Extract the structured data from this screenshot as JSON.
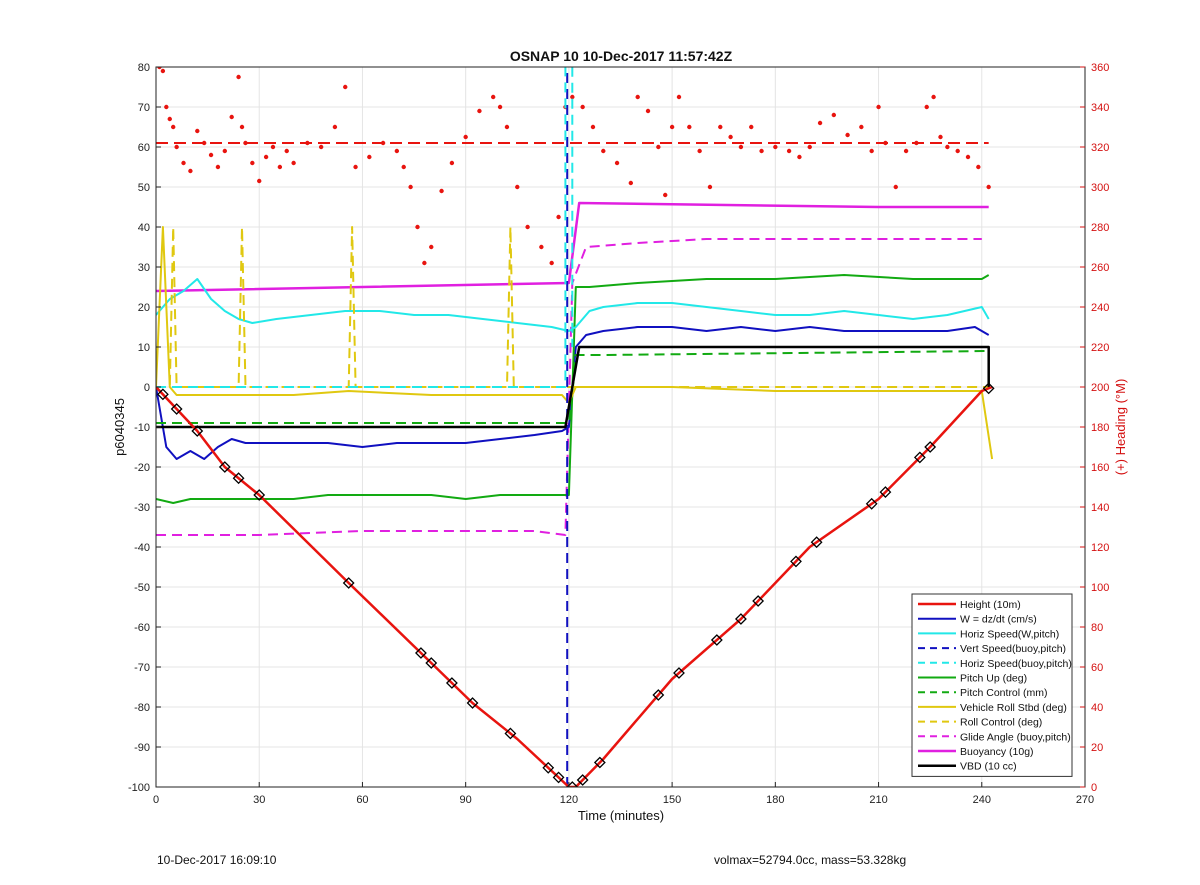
{
  "chart_data": {
    "type": "line",
    "title": "OSNAP 10 10-Dec-2017 11:57:42Z",
    "xlabel": "Time (minutes)",
    "ylabel": "p6040345",
    "y2label": "(+) Heading (°M)",
    "xlim": [
      0,
      270
    ],
    "ylim": [
      -100,
      80
    ],
    "y2lim": [
      0,
      360
    ],
    "xticks": [
      0,
      30,
      60,
      90,
      120,
      150,
      180,
      210,
      240,
      270
    ],
    "yticks": [
      -100,
      -90,
      -80,
      -70,
      -60,
      -50,
      -40,
      -30,
      -20,
      -10,
      0,
      10,
      20,
      30,
      40,
      50,
      60,
      70,
      80
    ],
    "y2ticks": [
      0,
      20,
      40,
      60,
      80,
      100,
      120,
      140,
      160,
      180,
      200,
      220,
      240,
      260,
      280,
      300,
      320,
      340,
      360
    ],
    "grid": true,
    "legend_position": "bottom-right",
    "series": [
      {
        "name": "Height (10m)",
        "color": "#e8140f",
        "style": "solid",
        "width": 2.5,
        "x": [
          0,
          12,
          20,
          30,
          56,
          80,
          92,
          105,
          120,
          122,
          130,
          150,
          170,
          190,
          210,
          225,
          240,
          243
        ],
        "y": [
          0,
          -11,
          -20,
          -27,
          -49,
          -69,
          -79,
          -88,
          -100,
          -100,
          -93,
          -73,
          -58,
          -40,
          -28,
          -15,
          -1,
          0
        ]
      },
      {
        "name": "W = dz/dt (cm/s)",
        "color": "#1010c0",
        "style": "solid",
        "width": 2,
        "x": [
          0,
          3,
          6,
          10,
          14,
          18,
          22,
          26,
          30,
          40,
          50,
          60,
          70,
          80,
          90,
          100,
          110,
          118,
          120,
          122,
          125,
          130,
          140,
          150,
          160,
          170,
          180,
          190,
          200,
          210,
          220,
          230,
          238,
          242
        ],
        "y": [
          0,
          -15,
          -18,
          -16,
          -18,
          -15,
          -13,
          -14,
          -14,
          -14,
          -14,
          -15,
          -14,
          -14,
          -14,
          -13,
          -12,
          -11,
          -10,
          10,
          13,
          14,
          15,
          15,
          14,
          15,
          14,
          15,
          14,
          14,
          14,
          14,
          15,
          13
        ]
      },
      {
        "name": "Horiz Speed(W,pitch)",
        "color": "#22e8e8",
        "style": "solid",
        "width": 2,
        "x": [
          0,
          4,
          8,
          12,
          16,
          20,
          24,
          28,
          35,
          45,
          55,
          65,
          75,
          85,
          95,
          105,
          115,
          120,
          122,
          126,
          130,
          140,
          150,
          160,
          170,
          180,
          190,
          200,
          210,
          220,
          230,
          240,
          242
        ],
        "y": [
          18,
          22,
          24,
          27,
          22,
          19,
          17,
          16,
          17,
          18,
          19,
          19,
          18,
          18,
          17,
          16,
          15,
          14,
          15,
          19,
          20,
          21,
          21,
          20,
          19,
          18,
          18,
          19,
          18,
          17,
          18,
          20,
          17
        ]
      },
      {
        "name": "Vert Speed(buoy,pitch)",
        "color": "#1010c0",
        "style": "dashed",
        "width": 2,
        "x": [
          119.5,
          119.5
        ],
        "y": [
          -100,
          80
        ]
      },
      {
        "name": "Horiz Speed(buoy,pitch)",
        "color": "#22e8e8",
        "style": "dashed",
        "width": 2,
        "x": [
          0,
          118,
          119,
          119,
          121,
          121
        ],
        "y": [
          0,
          0,
          0,
          80,
          80,
          10
        ]
      },
      {
        "name": "Pitch Up (deg)",
        "color": "#12aa12",
        "style": "solid",
        "width": 2,
        "x": [
          0,
          5,
          10,
          20,
          30,
          40,
          50,
          60,
          70,
          80,
          90,
          100,
          110,
          120,
          122,
          126,
          140,
          160,
          180,
          200,
          220,
          240,
          242
        ],
        "y": [
          -28,
          -29,
          -28,
          -28,
          -28,
          -28,
          -27,
          -27,
          -27,
          -27,
          -28,
          -27,
          -27,
          -27,
          25,
          25,
          26,
          27,
          27,
          28,
          27,
          27,
          28
        ]
      },
      {
        "name": "Pitch Control (mm)",
        "color": "#12aa12",
        "style": "dashed",
        "width": 2,
        "x": [
          0,
          119,
          120,
          121,
          122,
          130,
          242
        ],
        "y": [
          -9,
          -9,
          -9,
          -2,
          8,
          8,
          9
        ]
      },
      {
        "name": "Vehicle Roll Stbd (deg)",
        "color": "#e0c810",
        "style": "solid",
        "width": 2,
        "x": [
          0,
          2,
          4,
          6,
          12,
          20,
          30,
          40,
          56,
          80,
          100,
          118,
          120,
          122,
          130,
          150,
          180,
          210,
          240,
          243
        ],
        "y": [
          0,
          40,
          0,
          -2,
          -2,
          -2,
          -2,
          -2,
          -1,
          -2,
          -2,
          -2,
          -4,
          0,
          0,
          0,
          -1,
          -1,
          -1,
          -18
        ]
      },
      {
        "name": "Roll Control (deg)",
        "color": "#e0c810",
        "style": "dashed",
        "width": 2,
        "x": [
          0,
          4,
          5,
          6,
          24,
          25,
          26,
          56,
          57,
          58,
          102,
          103,
          104,
          120,
          242
        ],
        "y": [
          0,
          0,
          40,
          0,
          0,
          40,
          0,
          0,
          40,
          0,
          0,
          40,
          0,
          0,
          0
        ]
      },
      {
        "name": "Glide Angle (buoy,pitch)",
        "color": "#e020e0",
        "style": "dashed",
        "width": 2,
        "x": [
          0,
          10,
          30,
          60,
          90,
          110,
          119,
          121,
          125,
          140,
          160,
          180,
          200,
          220,
          240
        ],
        "y": [
          -37,
          -37,
          -37,
          -36,
          -36,
          -36,
          -37,
          26,
          35,
          36,
          37,
          37,
          37,
          37,
          37
        ]
      },
      {
        "name": "Buoyancy (10g)",
        "color": "#e020e0",
        "style": "solid",
        "width": 2.5,
        "x": [
          0,
          120,
          123,
          210,
          242
        ],
        "y": [
          24,
          26,
          46,
          45,
          45
        ]
      },
      {
        "name": "VBD (10 cc)",
        "color": "#000000",
        "style": "solid",
        "width": 2.5,
        "x": [
          0,
          119,
          123,
          242,
          242
        ],
        "y": [
          -10,
          -10,
          10,
          10,
          0
        ]
      }
    ],
    "heading_series": {
      "axis": "right",
      "color": "#e8140f",
      "marker": "dot",
      "mean_heading": 322,
      "x": [
        1,
        2,
        3,
        4,
        5,
        6,
        8,
        10,
        12,
        14,
        16,
        18,
        20,
        22,
        24,
        25,
        26,
        28,
        30,
        32,
        34,
        36,
        38,
        40,
        44,
        48,
        52,
        55,
        58,
        62,
        66,
        70,
        72,
        74,
        76,
        78,
        80,
        83,
        86,
        90,
        94,
        98,
        100,
        102,
        105,
        108,
        112,
        115,
        117,
        119,
        121,
        124,
        127,
        130,
        134,
        138,
        140,
        143,
        146,
        148,
        150,
        152,
        155,
        158,
        161,
        164,
        167,
        170,
        173,
        176,
        180,
        184,
        187,
        190,
        193,
        197,
        201,
        205,
        208,
        210,
        212,
        215,
        218,
        221,
        224,
        226,
        228,
        230,
        233,
        236,
        239,
        242
      ],
      "y": [
        360,
        358,
        340,
        334,
        330,
        320,
        312,
        308,
        328,
        322,
        316,
        310,
        318,
        335,
        355,
        330,
        322,
        312,
        303,
        315,
        320,
        310,
        318,
        312,
        322,
        320,
        330,
        350,
        310,
        315,
        322,
        318,
        310,
        300,
        280,
        262,
        270,
        298,
        312,
        325,
        338,
        345,
        340,
        330,
        300,
        280,
        270,
        262,
        285,
        340,
        345,
        340,
        330,
        318,
        312,
        302,
        345,
        338,
        320,
        296,
        330,
        345,
        330,
        318,
        300,
        330,
        325,
        320,
        330,
        318,
        320,
        318,
        315,
        320,
        332,
        336,
        326,
        330,
        318,
        340,
        322,
        300,
        318,
        322,
        340,
        345,
        325,
        320,
        318,
        315,
        310,
        300
      ]
    },
    "height_markers_x": [
      2,
      6,
      12,
      20,
      24,
      30,
      56,
      77,
      80,
      86,
      92,
      103,
      114,
      117,
      121,
      124,
      129,
      146,
      152,
      163,
      170,
      175,
      186,
      192,
      208,
      212,
      222,
      225,
      242
    ]
  },
  "footer": {
    "left": "10-Dec-2017 16:09:10",
    "right": "volmax=52794.0cc, mass=53.328kg"
  }
}
